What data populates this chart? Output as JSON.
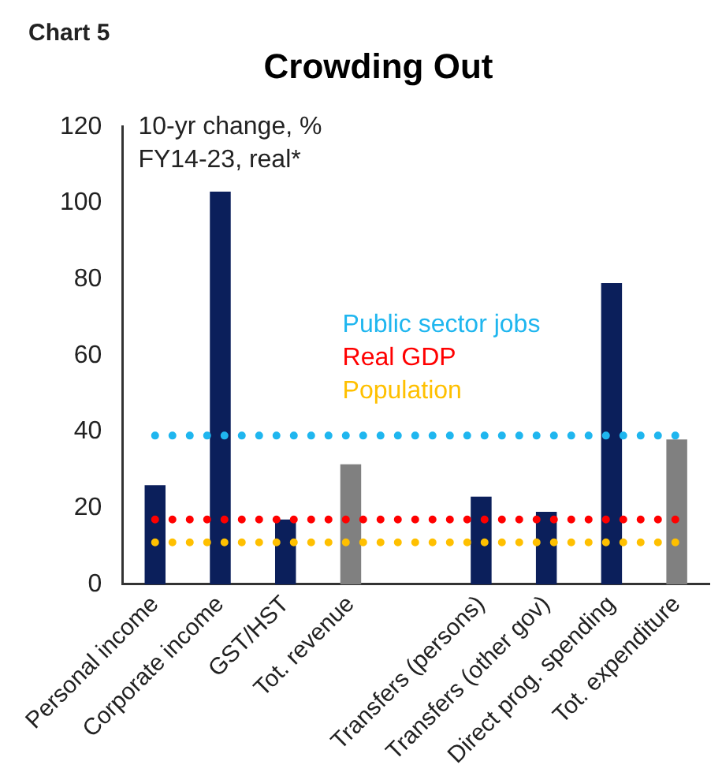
{
  "chart_data": {
    "type": "bar",
    "title": "Crowding Out",
    "annotations": [
      "Chart 5",
      "10-yr change, %\nFY14-23, real*"
    ],
    "categories": [
      "Personal income",
      "Corporate income",
      "GST/HST",
      "Tot. revenue",
      null,
      "Transfers (persons)",
      "Transfers (other gov)",
      "Direct prog. spending",
      "Tot. expenditure"
    ],
    "values": [
      26,
      103,
      17,
      31.5,
      null,
      23,
      19,
      79,
      38
    ],
    "colors": [
      "#0b1f5b",
      "#0b1f5b",
      "#0b1f5b",
      "#808080",
      null,
      "#0b1f5b",
      "#0b1f5b",
      "#0b1f5b",
      "#808080"
    ],
    "ylim": [
      0,
      120
    ],
    "yticks": [
      0,
      20,
      40,
      60,
      80,
      100,
      120
    ],
    "grid": false,
    "legend": false,
    "ref_lines": [
      {
        "axis": "y",
        "value": 39,
        "label": "Public sector jobs",
        "color": "#1fb6ef",
        "line_style": "dotted"
      },
      {
        "axis": "y",
        "value": 17,
        "label": "Real GDP",
        "color": "#ff0000",
        "line_style": "dotted"
      },
      {
        "axis": "y",
        "value": 11,
        "label": "Population",
        "color": "#ffc000",
        "line_style": "dotted"
      }
    ]
  }
}
